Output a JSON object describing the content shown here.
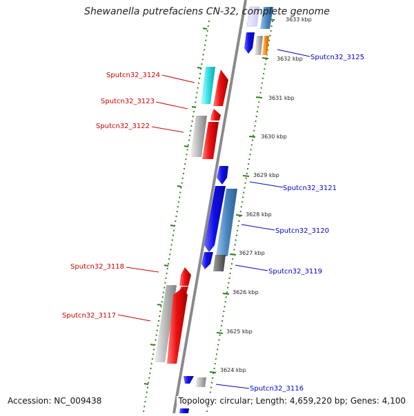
{
  "title": "Shewanella putrefaciens CN-32, complete genome",
  "footer": {
    "accession": "Accession: NC_009438",
    "info": "Topology: circular; Length: 4,659,220 bp; Genes: 4,100"
  },
  "colors": {
    "backbone": "#8a8a8a",
    "tick_green": "#2e7d1a",
    "forward_label": "#cc0000",
    "reverse_label": "#0000cc",
    "blue": "#1010e8",
    "steelblue": "#4a86c0",
    "red": "#ee1111",
    "cyan": "#33e0e8",
    "gray": "#b8b8b8",
    "darkgray": "#707070",
    "orange": "#ff8c10"
  },
  "kbp_labels": [
    "3633 kbp",
    "3632 kbp",
    "3631 kbp",
    "3630 kbp",
    "3629 kbp",
    "3628 kbp",
    "3627 kbp",
    "3626 kbp",
    "3625 kbp",
    "3624 kbp"
  ],
  "gene_labels": {
    "g3125": "Sputcn32_3125",
    "g3124": "Sputcn32_3124",
    "g3123": "Sputcn32_3123",
    "g3122": "Sputcn32_3122",
    "g3121": "Sputcn32_3121",
    "g3120": "Sputcn32_3120",
    "g3119": "Sputcn32_3119",
    "g3118": "Sputcn32_3118",
    "g3117": "Sputcn32_3117",
    "g3116": "Sputcn32_3116"
  }
}
